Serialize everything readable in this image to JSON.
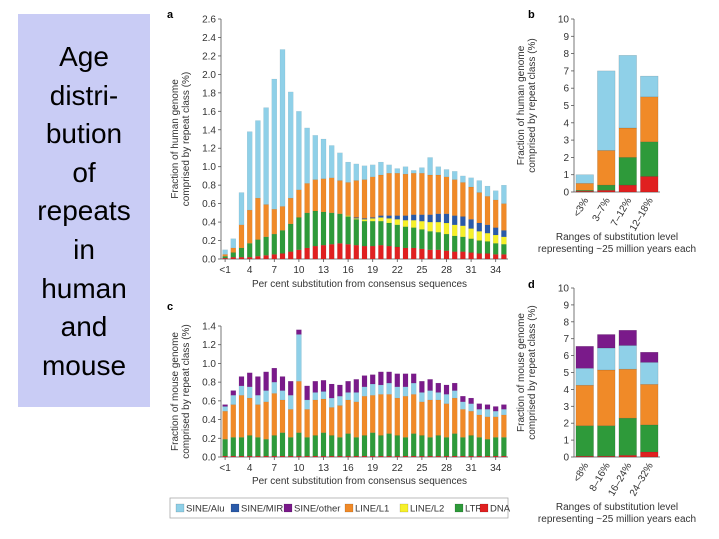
{
  "title_lines": [
    "Age",
    "distri-",
    "bution",
    "of",
    "repeats",
    "in",
    "human",
    "and",
    "mouse"
  ],
  "colors": {
    "SINE/Alu": "#8fd0e8",
    "SINE/MIR": "#2a5aa8",
    "SINE/other": "#7a1a8a",
    "LINE/L1": "#f08a28",
    "LINE/L2": "#f6f02a",
    "LTR": "#2e9a3a",
    "DNA": "#e02020"
  },
  "legend": [
    "SINE/Alu",
    "SINE/MIR",
    "SINE/other",
    "LINE/L1",
    "LINE/L2",
    "LTR",
    "DNA"
  ],
  "chart_data": [
    {
      "panel": "a",
      "type": "bar",
      "stacked": true,
      "xlabel": "Per cent substitution from consensus sequences",
      "ylabel": "Fraction of human genome comprised by repeat class (%)",
      "ylim": [
        0,
        2.6
      ],
      "yticks": [
        "0.0",
        "0.2",
        "0.4",
        "0.6",
        "0.8",
        "1.0",
        "1.2",
        "1.4",
        "1.6",
        "1.8",
        "2.0",
        "2.2",
        "2.4",
        "2.6"
      ],
      "xticks": [
        "<1",
        "4",
        "7",
        "10",
        "13",
        "16",
        "19",
        "22",
        "25",
        "28",
        "31",
        "34"
      ],
      "x": [
        0,
        1,
        2,
        3,
        4,
        5,
        6,
        7,
        8,
        9,
        10,
        11,
        12,
        13,
        14,
        15,
        16,
        17,
        18,
        19,
        20,
        21,
        22,
        23,
        24,
        25,
        26,
        27,
        28,
        29,
        30,
        31,
        32,
        33,
        34
      ],
      "series": [
        {
          "name": "DNA",
          "values": [
            0.01,
            0.02,
            0.02,
            0.02,
            0.03,
            0.04,
            0.05,
            0.06,
            0.08,
            0.1,
            0.12,
            0.14,
            0.15,
            0.16,
            0.17,
            0.16,
            0.15,
            0.14,
            0.14,
            0.15,
            0.14,
            0.13,
            0.12,
            0.12,
            0.11,
            0.1,
            0.1,
            0.09,
            0.08,
            0.08,
            0.07,
            0.06,
            0.06,
            0.05,
            0.05
          ]
        },
        {
          "name": "LTR",
          "values": [
            0.02,
            0.05,
            0.1,
            0.15,
            0.18,
            0.2,
            0.22,
            0.25,
            0.3,
            0.35,
            0.38,
            0.38,
            0.36,
            0.34,
            0.32,
            0.3,
            0.28,
            0.27,
            0.27,
            0.26,
            0.25,
            0.24,
            0.23,
            0.22,
            0.21,
            0.2,
            0.19,
            0.18,
            0.17,
            0.16,
            0.15,
            0.14,
            0.13,
            0.12,
            0.11
          ]
        },
        {
          "name": "LINE/L2",
          "values": [
            0,
            0,
            0,
            0,
            0,
            0,
            0,
            0,
            0,
            0,
            0,
            0,
            0,
            0,
            0,
            0.01,
            0.01,
            0.02,
            0.03,
            0.04,
            0.05,
            0.06,
            0.07,
            0.08,
            0.09,
            0.1,
            0.11,
            0.12,
            0.12,
            0.12,
            0.11,
            0.1,
            0.09,
            0.09,
            0.08
          ]
        },
        {
          "name": "SINE/MIR",
          "values": [
            0,
            0,
            0,
            0,
            0,
            0,
            0,
            0,
            0,
            0,
            0,
            0,
            0,
            0,
            0,
            0,
            0.01,
            0.01,
            0.01,
            0.02,
            0.03,
            0.04,
            0.05,
            0.06,
            0.07,
            0.08,
            0.09,
            0.1,
            0.1,
            0.1,
            0.1,
            0.09,
            0.09,
            0.08,
            0.07
          ]
        },
        {
          "name": "LINE/L1",
          "values": [
            0.02,
            0.05,
            0.25,
            0.36,
            0.45,
            0.35,
            0.27,
            0.26,
            0.28,
            0.3,
            0.32,
            0.34,
            0.36,
            0.38,
            0.36,
            0.36,
            0.4,
            0.42,
            0.44,
            0.44,
            0.46,
            0.46,
            0.45,
            0.45,
            0.45,
            0.43,
            0.42,
            0.4,
            0.39,
            0.37,
            0.35,
            0.33,
            0.31,
            0.3,
            0.29
          ]
        },
        {
          "name": "SINE/Alu",
          "values": [
            0.05,
            0.1,
            0.35,
            0.85,
            0.84,
            1.05,
            1.41,
            1.7,
            1.15,
            0.85,
            0.6,
            0.48,
            0.43,
            0.35,
            0.3,
            0.22,
            0.18,
            0.15,
            0.13,
            0.14,
            0.09,
            0.05,
            0.08,
            0.03,
            0.06,
            0.19,
            0.09,
            0.08,
            0.09,
            0.07,
            0.1,
            0.13,
            0.11,
            0.1,
            0.2
          ]
        }
      ]
    },
    {
      "panel": "b",
      "type": "bar",
      "stacked": true,
      "xlabel": "Ranges of substitution level representing ~25 million years each",
      "ylabel": "Fraction of human genome comprised by repeat class (%)",
      "ylim": [
        0,
        10
      ],
      "yticks": [
        "0",
        "1",
        "2",
        "3",
        "4",
        "5",
        "6",
        "7",
        "8",
        "9",
        "10"
      ],
      "categories": [
        "<3%",
        "3–7%",
        "7–12%",
        "12–18%"
      ],
      "series": [
        {
          "name": "DNA",
          "values": [
            0.05,
            0.1,
            0.4,
            0.9
          ]
        },
        {
          "name": "LTR",
          "values": [
            0.05,
            0.3,
            1.6,
            2.0
          ]
        },
        {
          "name": "LINE/L1",
          "values": [
            0.4,
            2.0,
            1.7,
            2.6
          ]
        },
        {
          "name": "SINE/Alu",
          "values": [
            0.5,
            4.6,
            4.2,
            1.2
          ]
        }
      ]
    },
    {
      "panel": "c",
      "type": "bar",
      "stacked": true,
      "xlabel": "Per cent substitution from consensus sequences",
      "ylabel": "Fraction of mouse genome comprised by repeat class (%)",
      "ylim": [
        0,
        1.4
      ],
      "yticks": [
        "0.0",
        "0.2",
        "0.4",
        "0.6",
        "0.8",
        "1.0",
        "1.2",
        "1.4"
      ],
      "xticks": [
        "<1",
        "4",
        "7",
        "10",
        "13",
        "16",
        "19",
        "22",
        "25",
        "28",
        "31",
        "34"
      ],
      "x": [
        0,
        1,
        2,
        3,
        4,
        5,
        6,
        7,
        8,
        9,
        10,
        11,
        12,
        13,
        14,
        15,
        16,
        17,
        18,
        19,
        20,
        21,
        22,
        23,
        24,
        25,
        26,
        27,
        28,
        29,
        30,
        31,
        32,
        33,
        34
      ],
      "series": [
        {
          "name": "DNA",
          "values": [
            0.01,
            0.01,
            0.01,
            0.01,
            0.01,
            0.01,
            0.01,
            0.01,
            0.01,
            0.01,
            0.01,
            0.01,
            0.01,
            0.01,
            0.01,
            0.01,
            0.01,
            0.01,
            0.01,
            0.01,
            0.01,
            0.01,
            0.01,
            0.01,
            0.01,
            0.01,
            0.01,
            0.01,
            0.01,
            0.01,
            0.01,
            0.01,
            0.01,
            0.01,
            0.01
          ]
        },
        {
          "name": "LTR",
          "values": [
            0.18,
            0.2,
            0.2,
            0.22,
            0.2,
            0.18,
            0.22,
            0.25,
            0.2,
            0.25,
            0.2,
            0.22,
            0.25,
            0.22,
            0.2,
            0.24,
            0.2,
            0.22,
            0.25,
            0.22,
            0.24,
            0.22,
            0.2,
            0.24,
            0.22,
            0.2,
            0.22,
            0.2,
            0.24,
            0.2,
            0.22,
            0.2,
            0.18,
            0.2,
            0.2
          ]
        },
        {
          "name": "LINE/L1",
          "values": [
            0.3,
            0.35,
            0.45,
            0.4,
            0.35,
            0.4,
            0.45,
            0.35,
            0.3,
            0.55,
            0.3,
            0.38,
            0.36,
            0.3,
            0.34,
            0.36,
            0.38,
            0.42,
            0.4,
            0.44,
            0.42,
            0.4,
            0.44,
            0.42,
            0.36,
            0.4,
            0.38,
            0.36,
            0.38,
            0.3,
            0.26,
            0.24,
            0.24,
            0.22,
            0.24
          ]
        },
        {
          "name": "SINE/Alu",
          "values": [
            0.05,
            0.1,
            0.1,
            0.12,
            0.1,
            0.12,
            0.12,
            0.1,
            0.15,
            0.5,
            0.1,
            0.08,
            0.08,
            0.1,
            0.1,
            0.08,
            0.1,
            0.1,
            0.12,
            0.1,
            0.12,
            0.12,
            0.1,
            0.12,
            0.1,
            0.1,
            0.08,
            0.1,
            0.08,
            0.08,
            0.08,
            0.06,
            0.08,
            0.06,
            0.06
          ]
        },
        {
          "name": "SINE/other",
          "values": [
            0.02,
            0.05,
            0.1,
            0.15,
            0.2,
            0.2,
            0.15,
            0.15,
            0.15,
            0.05,
            0.15,
            0.12,
            0.12,
            0.15,
            0.12,
            0.12,
            0.14,
            0.12,
            0.1,
            0.14,
            0.12,
            0.14,
            0.14,
            0.1,
            0.12,
            0.12,
            0.1,
            0.1,
            0.08,
            0.06,
            0.06,
            0.06,
            0.05,
            0.05,
            0.05
          ]
        }
      ]
    },
    {
      "panel": "d",
      "type": "bar",
      "stacked": true,
      "xlabel": "Ranges of substitution level representing ~25 million years each",
      "ylabel": "Fraction of mouse genome comprised by repeat class (%)",
      "ylim": [
        0,
        10
      ],
      "yticks": [
        "0",
        "1",
        "2",
        "3",
        "4",
        "5",
        "6",
        "7",
        "8",
        "9",
        "10"
      ],
      "categories": [
        "<8%",
        "8–16%",
        "16–24%",
        "24–32%"
      ],
      "series": [
        {
          "name": "DNA",
          "values": [
            0.05,
            0.05,
            0.1,
            0.3
          ]
        },
        {
          "name": "LTR",
          "values": [
            1.8,
            1.8,
            2.2,
            1.6
          ]
        },
        {
          "name": "LINE/L1",
          "values": [
            2.4,
            3.3,
            2.9,
            2.4
          ]
        },
        {
          "name": "SINE/Alu",
          "values": [
            1.0,
            1.3,
            1.4,
            1.3
          ]
        },
        {
          "name": "SINE/other",
          "values": [
            1.3,
            0.8,
            0.9,
            0.6
          ]
        }
      ]
    }
  ]
}
